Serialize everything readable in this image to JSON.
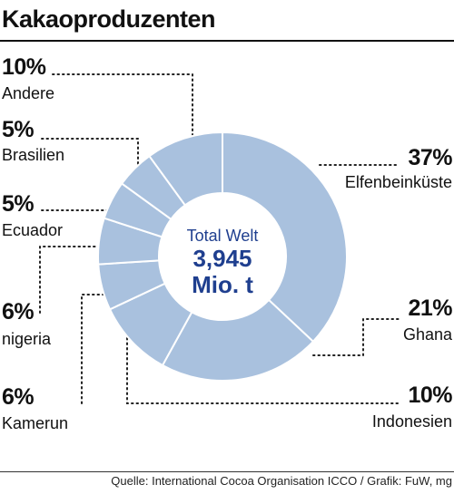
{
  "header": {
    "title": "Kakaoproduzenten"
  },
  "footer": {
    "source": "Quelle: International Cocoa Organisation ICCO / Grafik: FuW, mg"
  },
  "center": {
    "line1": "Total Welt",
    "line2": "3,945",
    "line3": "Mio. t"
  },
  "colors": {
    "slice": "#a9c1de",
    "border": "#ffffff",
    "accent": "#1f3f8f"
  },
  "chart_data": {
    "type": "pie",
    "donut": true,
    "title": "Kakaoproduzenten",
    "total_label": "Total Welt 3,945 Mio. t",
    "slices": [
      {
        "name": "Elfenbeinküste",
        "value": 37,
        "label": "37%"
      },
      {
        "name": "Ghana",
        "value": 21,
        "label": "21%"
      },
      {
        "name": "Indonesien",
        "value": 10,
        "label": "10%"
      },
      {
        "name": "Kamerun",
        "value": 6,
        "label": "6%"
      },
      {
        "name": "nigeria",
        "value": 6,
        "label": "6%"
      },
      {
        "name": "Ecuador",
        "value": 5,
        "label": "5%"
      },
      {
        "name": "Brasilien",
        "value": 5,
        "label": "5%"
      },
      {
        "name": "Andere",
        "value": 10,
        "label": "10%"
      }
    ]
  }
}
